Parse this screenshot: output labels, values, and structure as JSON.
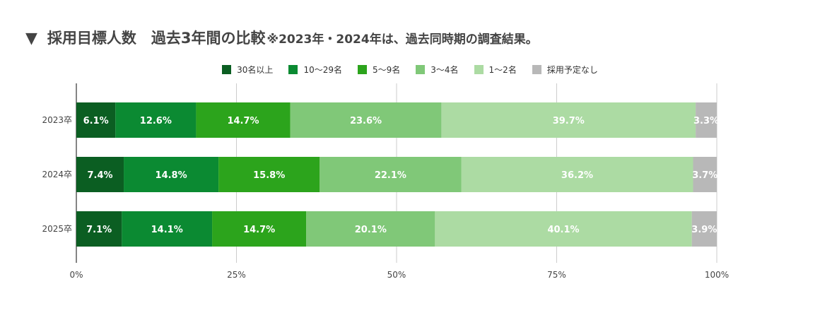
{
  "header": {
    "marker": "▼",
    "title": "採用目標人数　過去3年間の比較",
    "note": "※2023年・2024年は、過去同時期の調査結果。"
  },
  "chart_data": {
    "type": "bar",
    "orientation": "horizontal",
    "stacked": true,
    "title": "採用目標人数　過去3年間の比較",
    "categories": [
      "2023卒",
      "2024卒",
      "2025卒"
    ],
    "series": [
      {
        "name": "30名以上",
        "color": "#0b5e22",
        "values": [
          6.1,
          7.4,
          7.1
        ]
      },
      {
        "name": "10〜29名",
        "color": "#0b8a32",
        "values": [
          12.6,
          14.8,
          14.1
        ]
      },
      {
        "name": "5〜9名",
        "color": "#2ca41c",
        "values": [
          14.7,
          15.8,
          14.7
        ]
      },
      {
        "name": "3〜4名",
        "color": "#80c878",
        "values": [
          23.6,
          22.1,
          20.1
        ]
      },
      {
        "name": "1〜2名",
        "color": "#acdba3",
        "values": [
          39.7,
          36.2,
          40.1
        ]
      },
      {
        "name": "採用予定なし",
        "color": "#b8b8b8",
        "values": [
          3.3,
          3.7,
          3.9
        ]
      }
    ],
    "x_ticks": [
      "0%",
      "25%",
      "50%",
      "75%",
      "100%"
    ],
    "xlim": [
      0,
      100
    ],
    "grid": true,
    "legend": "top-center"
  }
}
